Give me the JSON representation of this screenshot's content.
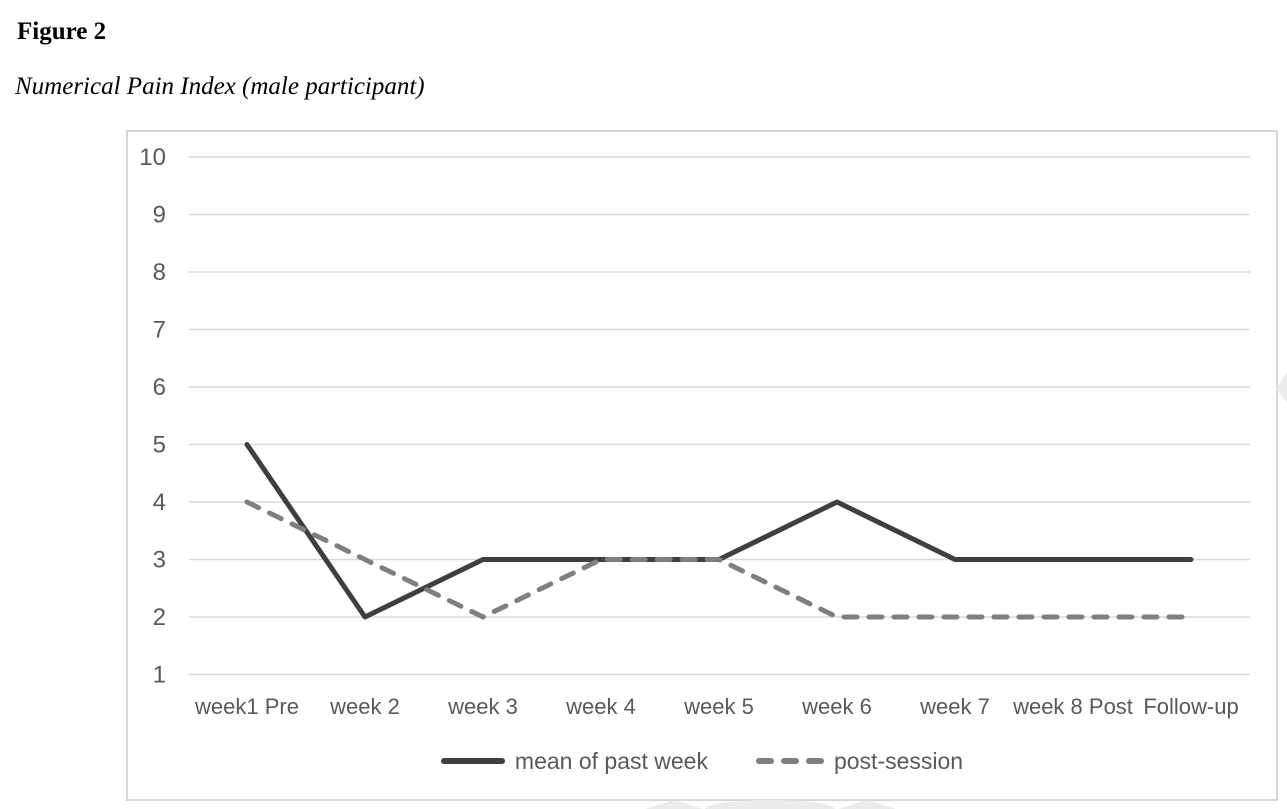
{
  "page": {
    "figure_label": "Figure 2",
    "figure_caption": "Numerical Pain Index (male participant)"
  },
  "chart_data": {
    "type": "line",
    "title": "Numerical Pain Index (male participant)",
    "categories": [
      "week1 Pre",
      "week 2",
      "week 3",
      "week 4",
      "week 5",
      "week 6",
      "week 7",
      "week 8 Post",
      "Follow-up"
    ],
    "series": [
      {
        "name": "mean of past week",
        "style": "solid",
        "color": "#3f3f3f",
        "values": [
          5,
          2,
          3,
          3,
          3,
          4,
          3,
          3,
          3
        ]
      },
      {
        "name": "post-session",
        "style": "dashed",
        "color": "#7f7f7f",
        "values": [
          4,
          3,
          2,
          3,
          3,
          2,
          2,
          2,
          2
        ]
      }
    ],
    "xlabel": "",
    "ylabel": "",
    "ylim": [
      1,
      10
    ],
    "yticks": [
      10,
      9,
      8,
      7,
      6,
      5,
      4,
      3,
      2,
      1
    ],
    "grid": "horizontal",
    "legend_position": "bottom",
    "colors": {
      "tick_label": "#595959",
      "gridline": "#d9d9d9",
      "frame_border": "#d6d6d6",
      "background": "#ffffff"
    }
  }
}
